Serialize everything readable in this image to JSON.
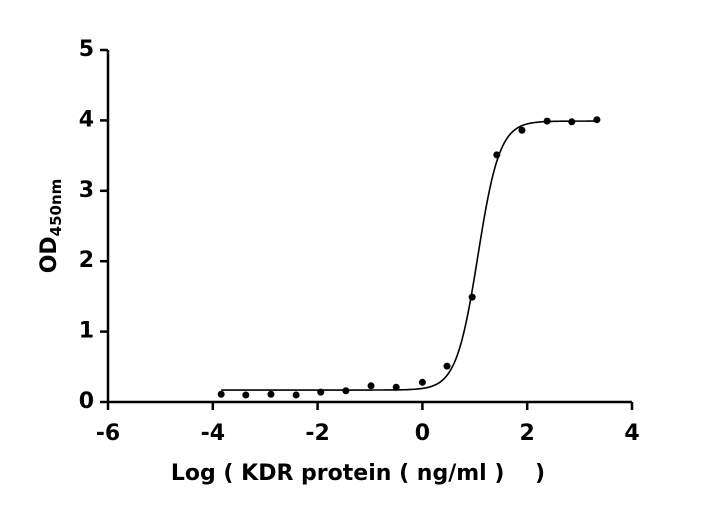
{
  "chart_data": {
    "type": "scatter",
    "y_label": "OD",
    "y_label_subscript": "450nm",
    "x_label": "Log ( KDR protein ( ng/ml )    )",
    "x": [
      -3.84,
      -3.37,
      -2.89,
      -2.41,
      -1.94,
      -1.46,
      -0.98,
      -0.5,
      0.0,
      0.47,
      0.95,
      1.42,
      1.9,
      2.38,
      2.85,
      3.33
    ],
    "values": [
      0.11,
      0.1,
      0.11,
      0.1,
      0.14,
      0.16,
      0.23,
      0.21,
      0.28,
      0.51,
      1.49,
      3.51,
      3.86,
      3.99,
      3.98,
      4.01
    ],
    "color": "#000000",
    "fit_curve": true,
    "xlim": [
      -6,
      4
    ],
    "xticks": [
      -6,
      -4,
      -2,
      0,
      2,
      4
    ],
    "ylim": [
      0,
      5
    ],
    "yticks": [
      0,
      1,
      2,
      3,
      4,
      5
    ]
  }
}
